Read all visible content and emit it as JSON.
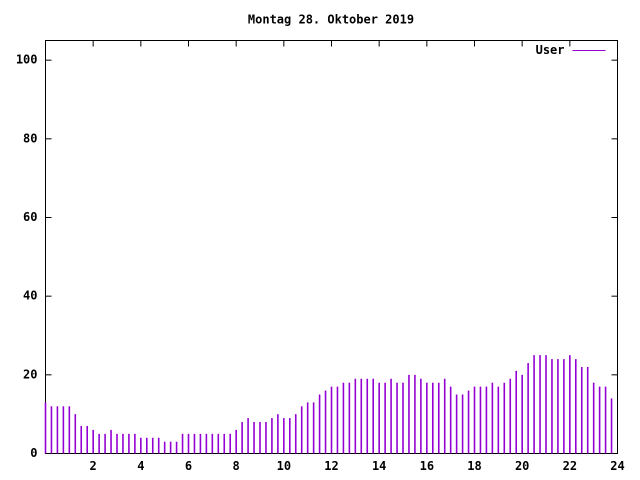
{
  "chart_data": {
    "type": "impulse",
    "title": "Montag 28. Oktober 2019",
    "x": [
      0,
      0.25,
      0.5,
      0.75,
      1,
      1.25,
      1.5,
      1.75,
      2,
      2.25,
      2.5,
      2.75,
      3,
      3.25,
      3.5,
      3.75,
      4,
      4.25,
      4.5,
      4.75,
      5,
      5.25,
      5.5,
      5.75,
      6,
      6.25,
      6.5,
      6.75,
      7,
      7.25,
      7.5,
      7.75,
      8,
      8.25,
      8.5,
      8.75,
      9,
      9.25,
      9.5,
      9.75,
      10,
      10.25,
      10.5,
      10.75,
      11,
      11.25,
      11.5,
      11.75,
      12,
      12.25,
      12.5,
      12.75,
      13,
      13.25,
      13.5,
      13.75,
      14,
      14.25,
      14.5,
      14.75,
      15,
      15.25,
      15.5,
      15.75,
      16,
      16.25,
      16.5,
      16.75,
      17,
      17.25,
      17.5,
      17.75,
      18,
      18.25,
      18.5,
      18.75,
      19,
      19.25,
      19.5,
      19.75,
      20,
      20.25,
      20.5,
      20.75,
      21,
      21.25,
      21.5,
      21.75,
      22,
      22.25,
      22.5,
      22.75,
      23,
      23.25,
      23.5,
      23.75
    ],
    "series": [
      {
        "name": "User",
        "color": "#9400d3",
        "values": [
          13,
          12,
          12,
          12,
          12,
          10,
          7,
          7,
          6,
          5,
          5,
          6,
          5,
          5,
          5,
          5,
          4,
          4,
          4,
          4,
          3,
          3,
          3,
          5,
          5,
          5,
          5,
          5,
          5,
          5,
          5,
          5,
          6,
          8,
          9,
          8,
          8,
          8,
          9,
          10,
          9,
          9,
          10,
          12,
          13,
          13,
          15,
          16,
          17,
          17,
          18,
          18,
          19,
          19,
          19,
          19,
          18,
          18,
          19,
          18,
          18,
          20,
          20,
          19,
          18,
          18,
          18,
          19,
          17,
          15,
          15,
          16,
          17,
          17,
          17,
          18,
          17,
          18,
          19,
          21,
          20,
          23,
          25,
          25,
          25,
          24,
          24,
          24,
          25,
          24,
          22,
          22,
          18,
          17,
          17,
          14
        ]
      }
    ],
    "xlim": [
      0,
      24
    ],
    "ylim": [
      0,
      105
    ],
    "xticks": [
      2,
      4,
      6,
      8,
      10,
      12,
      14,
      16,
      18,
      20,
      22,
      24
    ],
    "yticks": [
      0,
      20,
      40,
      60,
      80,
      100
    ],
    "legend": "top-right"
  }
}
